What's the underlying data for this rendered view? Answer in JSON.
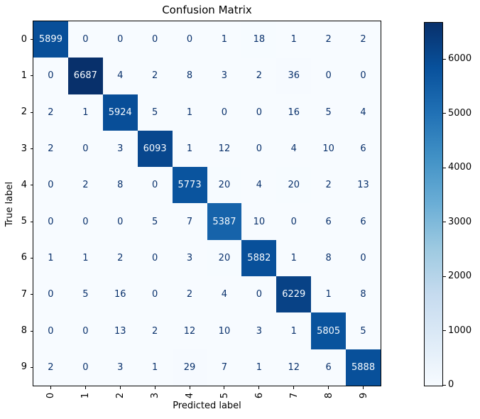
{
  "chart_data": {
    "type": "heatmap",
    "title": "Confusion Matrix",
    "xlabel": "Predicted label",
    "ylabel": "True label",
    "x_tick_labels": [
      "0",
      "1",
      "2",
      "3",
      "4",
      "5",
      "6",
      "7",
      "8",
      "9"
    ],
    "y_tick_labels": [
      "0",
      "1",
      "2",
      "3",
      "4",
      "5",
      "6",
      "7",
      "8",
      "9"
    ],
    "matrix": [
      [
        5899,
        0,
        0,
        0,
        0,
        1,
        18,
        1,
        2,
        2
      ],
      [
        0,
        6687,
        4,
        2,
        8,
        3,
        2,
        36,
        0,
        0
      ],
      [
        2,
        1,
        5924,
        5,
        1,
        0,
        0,
        16,
        5,
        4
      ],
      [
        2,
        0,
        3,
        6093,
        1,
        12,
        0,
        4,
        10,
        6
      ],
      [
        0,
        2,
        8,
        0,
        5773,
        20,
        4,
        20,
        2,
        13
      ],
      [
        0,
        0,
        0,
        5,
        7,
        5387,
        10,
        0,
        6,
        6
      ],
      [
        1,
        1,
        2,
        0,
        3,
        20,
        5882,
        1,
        8,
        0
      ],
      [
        0,
        5,
        16,
        0,
        2,
        4,
        0,
        6229,
        1,
        8
      ],
      [
        0,
        0,
        13,
        2,
        12,
        10,
        3,
        1,
        5805,
        5
      ],
      [
        2,
        0,
        3,
        1,
        29,
        7,
        1,
        12,
        6,
        5888
      ]
    ],
    "vmin": 0,
    "vmax": 6687,
    "colormap": "Blues",
    "colorbar_ticks": [
      0,
      1000,
      2000,
      3000,
      4000,
      5000,
      6000
    ],
    "legend_position": "right-colorbar",
    "grid": false,
    "colors": {
      "blues_anchors": [
        "#f7fbff",
        "#deebf7",
        "#c6dbef",
        "#9ecae1",
        "#6baed6",
        "#4292c6",
        "#2171b5",
        "#08519c",
        "#08306b"
      ],
      "cell_text_light": "#f7fbff",
      "cell_text_dark": "#08306b",
      "spine": "#000000",
      "figure_background": "#ffffff"
    }
  }
}
